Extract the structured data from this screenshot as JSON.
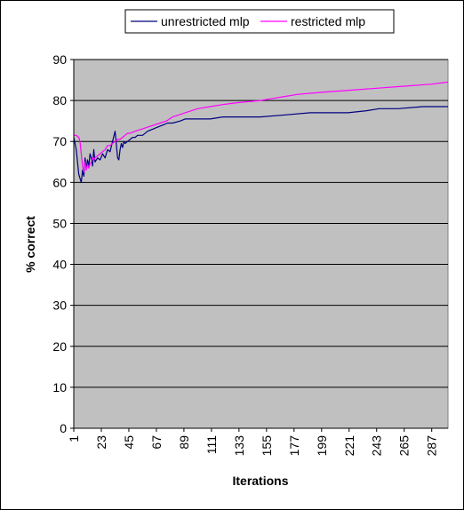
{
  "chart_data": {
    "type": "line",
    "title": "",
    "xlabel": "Iterations",
    "ylabel": "% correct",
    "ylim": [
      0,
      90
    ],
    "xlim": [
      1,
      300
    ],
    "y_ticks": [
      "0",
      "10",
      "20",
      "30",
      "40",
      "50",
      "60",
      "70",
      "80",
      "90"
    ],
    "x_ticks": [
      "1",
      "23",
      "45",
      "67",
      "89",
      "111",
      "133",
      "155",
      "177",
      "199",
      "221",
      "243",
      "265",
      "287"
    ],
    "grid": true,
    "legend_position": "top",
    "plot_background": "#c0c0c0",
    "series": [
      {
        "name": "unrestricted mlp",
        "color": "#000080",
        "x": [
          1,
          3,
          5,
          7,
          8,
          9,
          10,
          11,
          12,
          13,
          14,
          15,
          16,
          17,
          18,
          20,
          22,
          24,
          26,
          28,
          30,
          32,
          34,
          36,
          37,
          38,
          39,
          40,
          41,
          42,
          44,
          46,
          48,
          50,
          52,
          56,
          60,
          64,
          68,
          72,
          76,
          80,
          86,
          90,
          96,
          100,
          110,
          120,
          133,
          150,
          170,
          190,
          210,
          220,
          235,
          245,
          260,
          280,
          300
        ],
        "y": [
          71.0,
          68.0,
          62.0,
          60.0,
          63.0,
          61.5,
          66.0,
          63.5,
          65.5,
          64.0,
          67.0,
          66.0,
          64.0,
          68.0,
          65.0,
          66.0,
          65.5,
          67.0,
          66.0,
          68.0,
          67.5,
          70.0,
          72.5,
          66.0,
          65.5,
          68.0,
          69.5,
          68.5,
          70.0,
          69.5,
          70.0,
          70.5,
          71.0,
          71.0,
          71.5,
          71.5,
          72.5,
          73.0,
          73.5,
          74.0,
          74.5,
          74.5,
          75.0,
          75.5,
          75.5,
          75.5,
          75.5,
          76.0,
          76.0,
          76.0,
          76.5,
          77.0,
          77.0,
          77.0,
          77.5,
          78.0,
          78.0,
          78.5,
          78.5
        ]
      },
      {
        "name": "restricted mlp",
        "color": "#ff00ff",
        "x": [
          1,
          3,
          5,
          6,
          7,
          8,
          9,
          10,
          11,
          12,
          13,
          14,
          15,
          16,
          17,
          18,
          20,
          22,
          24,
          26,
          28,
          30,
          32,
          34,
          36,
          38,
          40,
          42,
          44,
          46,
          50,
          55,
          60,
          65,
          70,
          75,
          80,
          85,
          90,
          100,
          110,
          120,
          133,
          150,
          160,
          170,
          180,
          199,
          221,
          243,
          265,
          287,
          300
        ],
        "y": [
          71.5,
          71.5,
          71.0,
          70.0,
          67.0,
          64.0,
          62.5,
          65.0,
          63.0,
          64.5,
          63.5,
          64.5,
          65.0,
          66.0,
          65.5,
          66.0,
          66.5,
          67.0,
          67.5,
          68.0,
          69.0,
          69.0,
          69.5,
          70.0,
          70.5,
          70.5,
          71.0,
          71.5,
          72.0,
          72.0,
          72.5,
          73.0,
          73.5,
          74.0,
          74.5,
          75.0,
          76.0,
          76.5,
          77.0,
          78.0,
          78.5,
          79.0,
          79.5,
          80.0,
          80.5,
          81.0,
          81.5,
          82.0,
          82.5,
          83.0,
          83.5,
          84.0,
          84.5
        ]
      }
    ]
  }
}
